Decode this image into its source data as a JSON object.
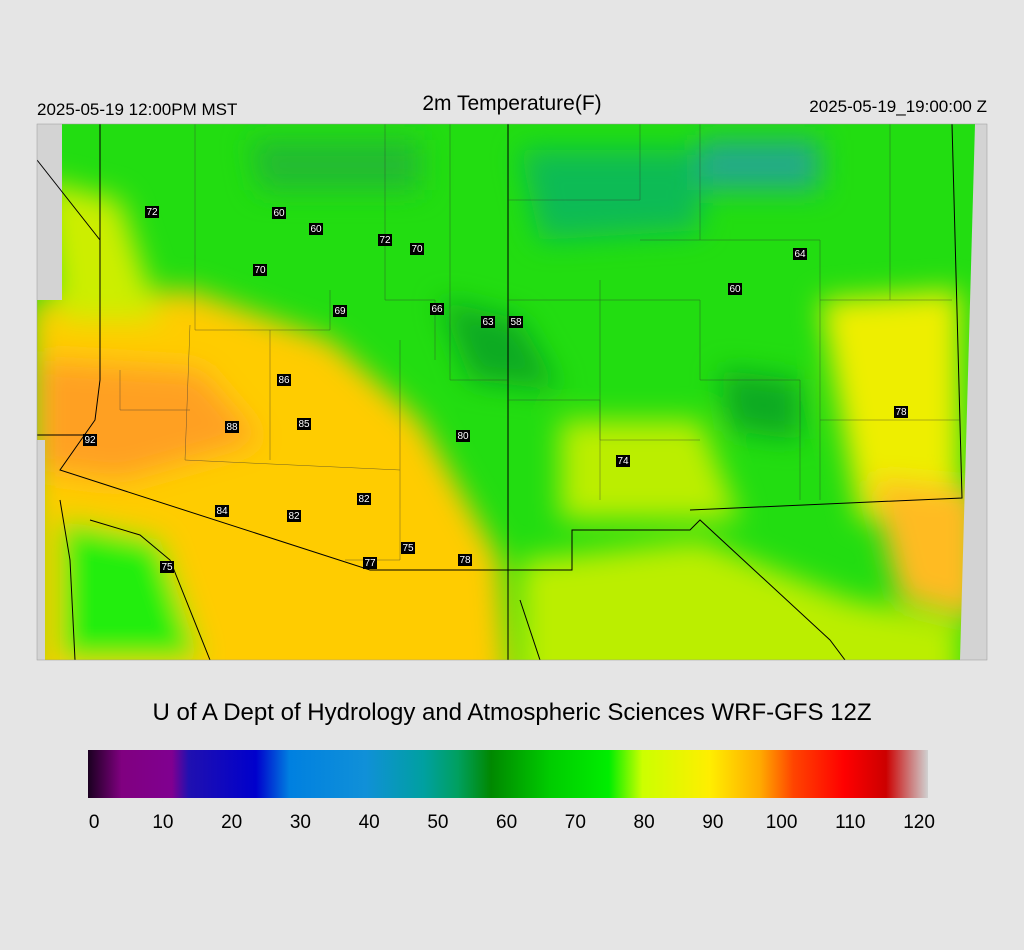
{
  "header": {
    "left": "2025-05-19 12:00PM MST",
    "title": "2m Temperature(F)",
    "right": "2025-05-19_19:00:00 Z"
  },
  "stations": [
    72,
    60,
    60,
    72,
    70,
    70,
    64,
    60,
    69,
    66,
    63,
    58,
    86,
    78,
    88,
    85,
    80,
    92,
    74,
    82,
    84,
    82,
    75,
    77,
    78,
    75
  ],
  "credit": "U of A Dept of Hydrology and Atmospheric Sciences WRF-GFS 12Z",
  "colorbar": {
    "lim": [
      -0.9,
      121.3
    ],
    "ticks": [
      0,
      10,
      20,
      30,
      40,
      50,
      60,
      70,
      80,
      90,
      100,
      110,
      120
    ]
  }
}
